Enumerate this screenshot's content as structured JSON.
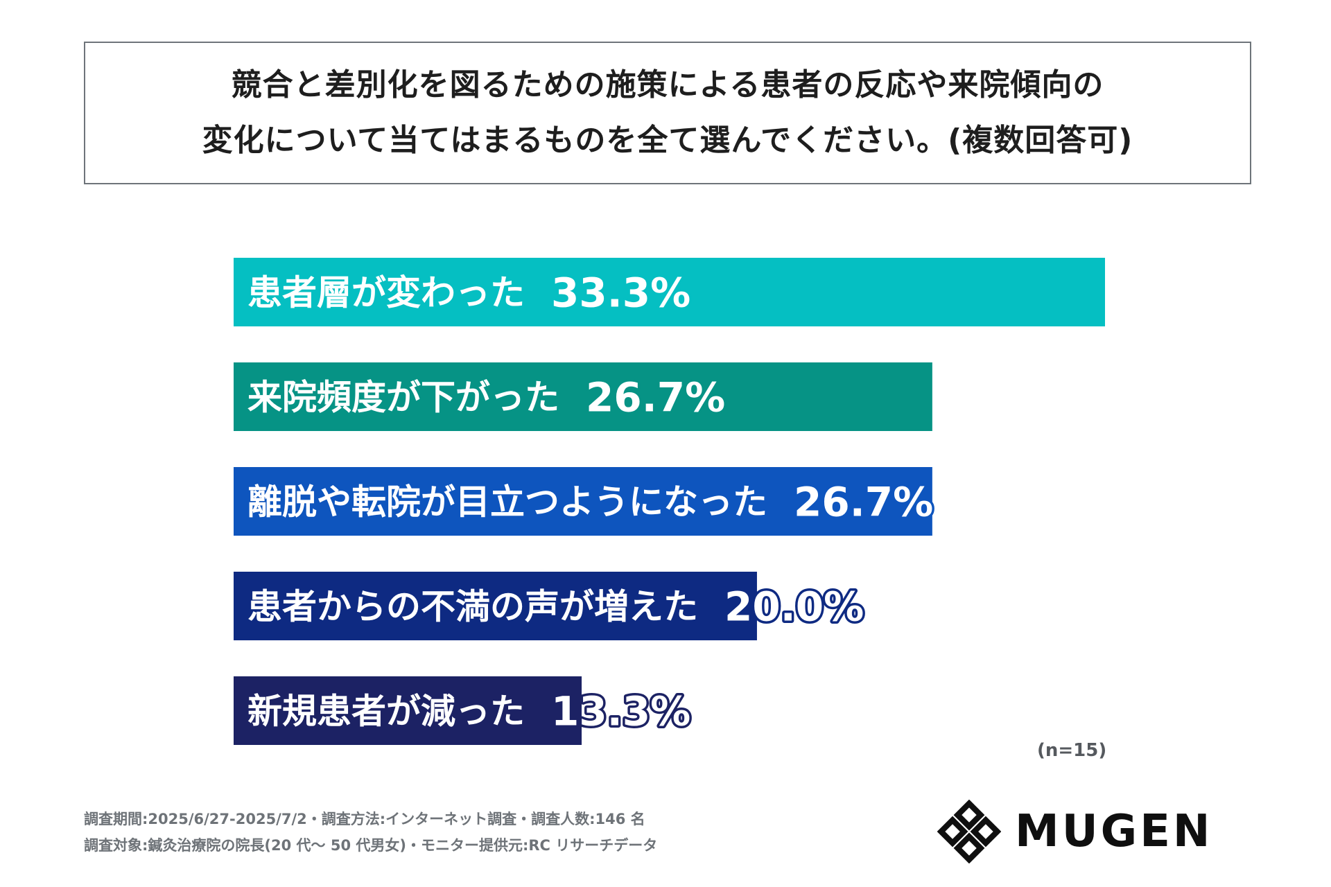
{
  "title": {
    "line1": "競合と差別化を図るための施策による患者の反応や来院傾向の",
    "line2": "変化について当てはまるものを全て選んでください。(複数回答可)"
  },
  "sample_size": "(n=15)",
  "footer": {
    "line1": "調査期間:2025/6/27-2025/7/2・調査方法:インターネット調査・調査人数:146 名",
    "line2": "調査対象:鍼灸治療院の院長(20 代〜 50 代男女)・モニター提供元:RC リサーチデータ"
  },
  "logo": {
    "text": "MUGEN"
  },
  "chart_data": {
    "type": "bar",
    "orientation": "horizontal",
    "categories": [
      "患者層が変わった",
      "来院頻度が下がった",
      "離脱や転院が目立つようになった",
      "患者からの不満の声が増えた",
      "新規患者が減った"
    ],
    "values": [
      33.3,
      26.7,
      26.7,
      20.0,
      13.3
    ],
    "value_labels": [
      "33.3%",
      "26.7%",
      "26.7%",
      "20.0%",
      "13.3%"
    ],
    "colors": [
      "#05bfc2",
      "#069385",
      "#0e55be",
      "#0e2a82",
      "#1c2264"
    ],
    "xlim": [
      0,
      33.3
    ],
    "grid": false,
    "legend": "none"
  }
}
